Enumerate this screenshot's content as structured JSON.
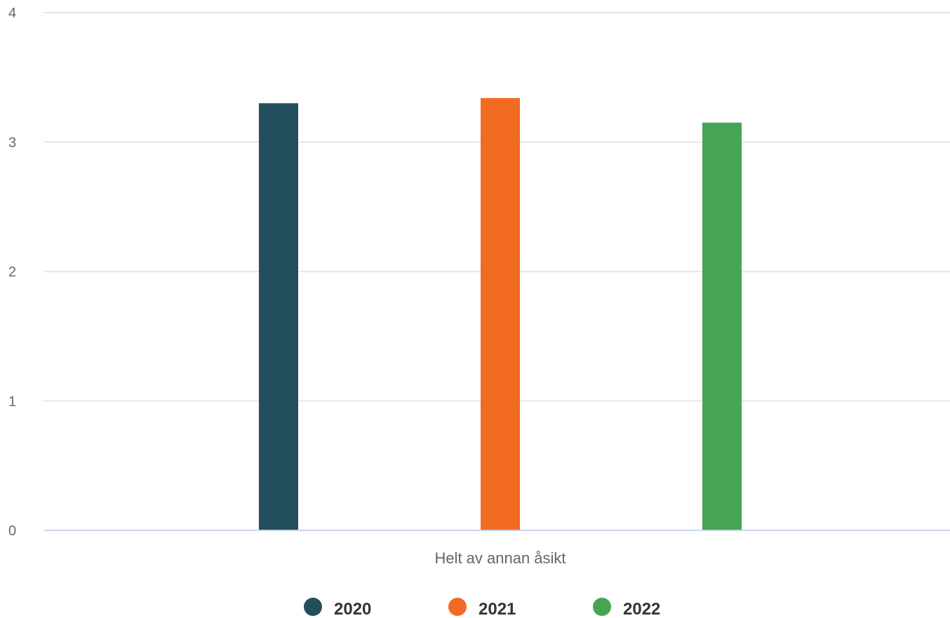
{
  "chart_data": {
    "type": "bar",
    "title": "",
    "xlabel": "",
    "ylabel": "",
    "categories": [
      "Helt av annan åsikt"
    ],
    "series": [
      {
        "name": "2020",
        "values": [
          3.3
        ],
        "color": "#234e5c"
      },
      {
        "name": "2021",
        "values": [
          3.34
        ],
        "color": "#f26b22"
      },
      {
        "name": "2022",
        "values": [
          3.15
        ],
        "color": "#45a554"
      }
    ],
    "ylim": [
      0,
      4
    ],
    "yticks": [
      "0",
      "1",
      "2",
      "3",
      "4"
    ],
    "grid": true,
    "legend_position": "bottom-center"
  }
}
